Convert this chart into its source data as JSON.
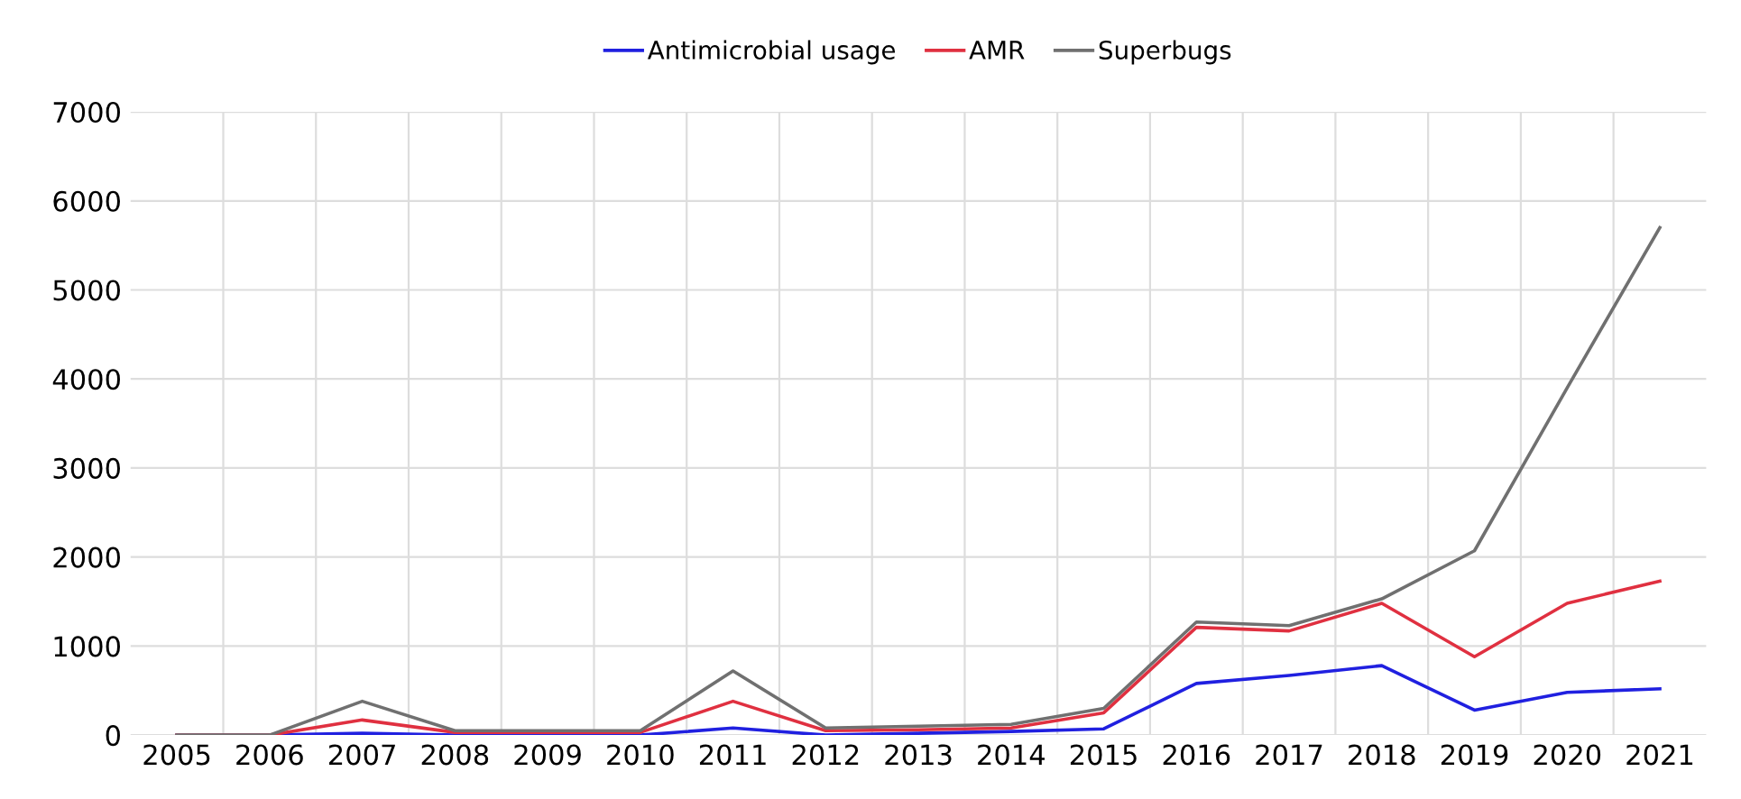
{
  "chart_data": {
    "type": "line",
    "categories": [
      "2005",
      "2006",
      "2007",
      "2008",
      "2009",
      "2010",
      "2011",
      "2012",
      "2013",
      "2014",
      "2015",
      "2016",
      "2017",
      "2018",
      "2019",
      "2020",
      "2021"
    ],
    "series": [
      {
        "name": "Antimicrobial usage",
        "color": "#2020e0",
        "values": [
          0,
          0,
          20,
          0,
          0,
          0,
          80,
          0,
          20,
          40,
          70,
          580,
          670,
          780,
          280,
          480,
          520
        ]
      },
      {
        "name": "AMR",
        "color": "#e03040",
        "values": [
          0,
          0,
          170,
          30,
          30,
          30,
          380,
          50,
          60,
          80,
          250,
          1210,
          1170,
          1480,
          880,
          1480,
          1730
        ]
      },
      {
        "name": "Superbugs",
        "color": "#707070",
        "values": [
          0,
          0,
          380,
          50,
          50,
          50,
          720,
          80,
          100,
          120,
          300,
          1270,
          1230,
          1530,
          2070,
          3900,
          5700
        ]
      }
    ],
    "ylim": [
      0,
      7000
    ],
    "yticks": [
      0,
      1000,
      2000,
      3000,
      4000,
      5000,
      6000,
      7000
    ],
    "grid": true,
    "legend": "top",
    "marker": "none",
    "line_style": "solid"
  }
}
